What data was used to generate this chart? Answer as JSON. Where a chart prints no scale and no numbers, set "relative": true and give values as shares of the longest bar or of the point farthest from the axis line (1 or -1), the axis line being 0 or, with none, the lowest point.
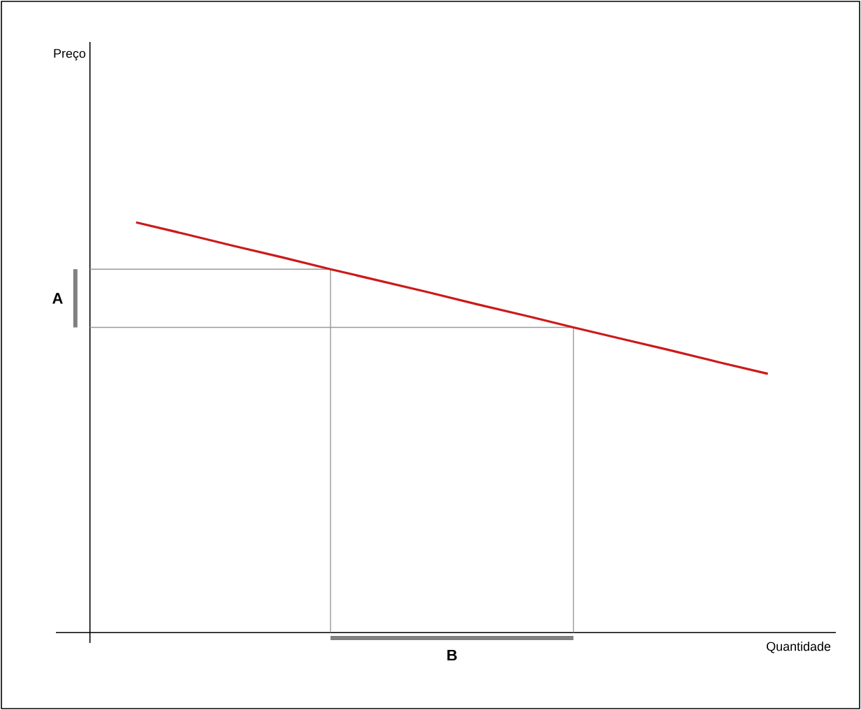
{
  "chart_data": {
    "type": "line",
    "relative": true,
    "xlabel": "Quantidade",
    "categories": [
      null,
      null,
      null,
      null,
      null,
      null,
      null,
      null,
      null,
      null,
      null,
      null,
      null,
      null
    ],
    "series": [
      {
        "color": "#cc1a1a",
        "values": [
          1,
          0.972,
          0.943,
          0.915,
          0.886,
          0.858,
          0.83,
          0.801,
          0.773,
          0.744,
          0.716,
          0.688,
          0.659,
          0.631
        ]
      }
    ],
    "ref_lines": [
      {
        "axis": "y",
        "value": 0.886,
        "color": "#999999"
      },
      {
        "axis": "y",
        "value": 0.744,
        "color": "#999999"
      }
    ],
    "annotations": [
      "A",
      "B",
      "Preço"
    ],
    "marker": "none",
    "line_style": "solid"
  }
}
